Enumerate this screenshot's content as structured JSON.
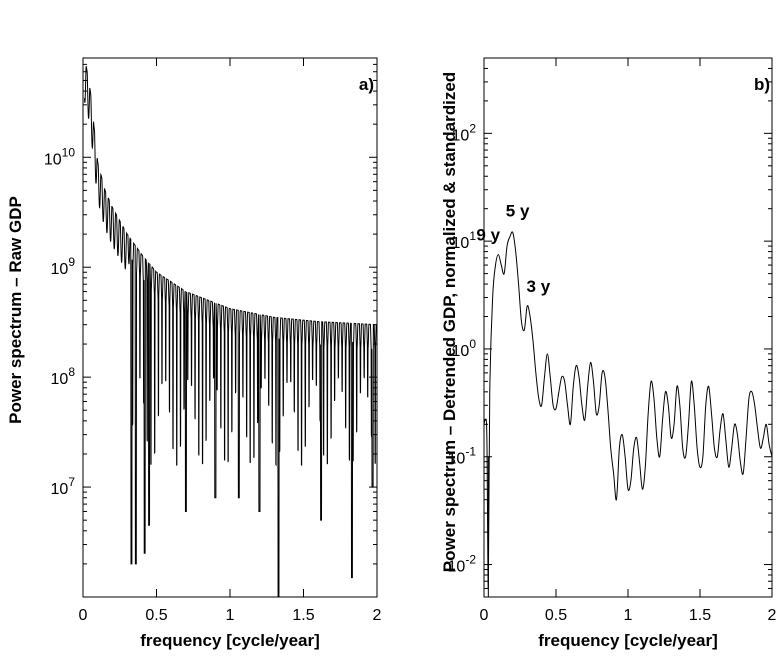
{
  "chart_data": [
    {
      "id": "a",
      "type": "line",
      "panel_label": "a)",
      "xlabel": "frequency [cycle/year]",
      "ylabel": "Power spectrum – Raw GDP",
      "xlim": [
        0,
        2
      ],
      "ylim": [
        1000000,
        80000000000
      ],
      "yscale": "log",
      "xticks": [
        0,
        0.5,
        1,
        1.5,
        2
      ],
      "xtick_labels": [
        "0",
        "0.5",
        "1",
        "1.5",
        "2"
      ],
      "yticks": [
        10000000,
        100000000,
        1000000000,
        10000000000
      ],
      "ytick_labels": [
        {
          "base": "10",
          "exp": "7"
        },
        {
          "base": "10",
          "exp": "8"
        },
        {
          "base": "10",
          "exp": "9"
        },
        {
          "base": "10",
          "exp": "10"
        }
      ],
      "envelope": {
        "x": [
          0.02,
          0.05,
          0.1,
          0.15,
          0.2,
          0.3,
          0.4,
          0.5,
          0.7,
          1.0,
          1.3,
          1.6,
          2.0
        ],
        "y": [
          70000000000,
          40000000000,
          9000000000,
          5000000000,
          3500000000,
          2000000000,
          1300000000,
          900000000,
          600000000,
          420000000,
          350000000,
          320000000,
          300000000
        ]
      },
      "spikes": {
        "x": [
          0.33,
          0.36,
          0.42,
          0.45,
          0.7,
          0.9,
          1.06,
          1.2,
          1.33,
          1.62,
          1.83,
          1.97
        ],
        "y": [
          2000000,
          2000000,
          2500000,
          4500000,
          6000000,
          8000000,
          8000000,
          6000000,
          1000000,
          5000000,
          1500000,
          10000000
        ]
      }
    },
    {
      "id": "b",
      "type": "line",
      "panel_label": "b)",
      "xlabel": "frequency [cycle/year]",
      "ylabel": "Power spectrum – Detrended GDP, normalized & standardized",
      "xlim": [
        0,
        2
      ],
      "ylim": [
        0.005,
        500
      ],
      "yscale": "log",
      "xticks": [
        0,
        0.5,
        1,
        1.5,
        2
      ],
      "xtick_labels": [
        "0",
        "0.5",
        "1",
        "1.5",
        "2"
      ],
      "yticks": [
        0.01,
        0.1,
        1,
        10,
        100
      ],
      "ytick_labels": [
        {
          "base": "10",
          "exp": "-2"
        },
        {
          "base": "10",
          "exp": "-1"
        },
        {
          "base": "10",
          "exp": "0"
        },
        {
          "base": "10",
          "exp": "1"
        },
        {
          "base": "10",
          "exp": "2"
        }
      ],
      "series": {
        "x": [
          0,
          0.01,
          0.02,
          0.03,
          0.04,
          0.06,
          0.08,
          0.1,
          0.12,
          0.14,
          0.16,
          0.18,
          0.2,
          0.22,
          0.24,
          0.26,
          0.28,
          0.3,
          0.32,
          0.34,
          0.36,
          0.38,
          0.4,
          0.42,
          0.44,
          0.46,
          0.48,
          0.5,
          0.52,
          0.54,
          0.56,
          0.58,
          0.6,
          0.62,
          0.64,
          0.66,
          0.68,
          0.7,
          0.72,
          0.74,
          0.76,
          0.78,
          0.8,
          0.82,
          0.84,
          0.86,
          0.88,
          0.9,
          0.92,
          0.94,
          0.96,
          0.98,
          1.0,
          1.02,
          1.04,
          1.06,
          1.08,
          1.1,
          1.12,
          1.14,
          1.16,
          1.18,
          1.2,
          1.22,
          1.24,
          1.26,
          1.28,
          1.3,
          1.32,
          1.34,
          1.36,
          1.38,
          1.4,
          1.42,
          1.44,
          1.46,
          1.48,
          1.5,
          1.52,
          1.54,
          1.56,
          1.58,
          1.6,
          1.62,
          1.64,
          1.66,
          1.68,
          1.7,
          1.72,
          1.74,
          1.76,
          1.78,
          1.8,
          1.82,
          1.84,
          1.86,
          1.88,
          1.9,
          1.92,
          1.94,
          1.96,
          1.98,
          2.0
        ],
        "y": [
          0.2,
          0.22,
          0.15,
          0.006,
          0.4,
          3,
          6,
          7.5,
          6,
          5,
          9,
          11,
          12,
          8,
          4,
          1.8,
          1.5,
          2.5,
          2,
          1.2,
          0.6,
          0.35,
          0.3,
          0.55,
          0.9,
          0.55,
          0.3,
          0.28,
          0.4,
          0.55,
          0.5,
          0.3,
          0.2,
          0.45,
          0.7,
          0.55,
          0.3,
          0.22,
          0.45,
          0.75,
          0.5,
          0.25,
          0.3,
          0.6,
          0.55,
          0.28,
          0.12,
          0.07,
          0.04,
          0.12,
          0.16,
          0.1,
          0.05,
          0.06,
          0.12,
          0.15,
          0.09,
          0.05,
          0.08,
          0.25,
          0.5,
          0.35,
          0.15,
          0.1,
          0.22,
          0.4,
          0.3,
          0.15,
          0.2,
          0.45,
          0.3,
          0.12,
          0.1,
          0.2,
          0.5,
          0.3,
          0.12,
          0.08,
          0.1,
          0.3,
          0.45,
          0.25,
          0.12,
          0.1,
          0.18,
          0.25,
          0.14,
          0.08,
          0.12,
          0.2,
          0.16,
          0.09,
          0.07,
          0.15,
          0.35,
          0.4,
          0.3,
          0.18,
          0.12,
          0.15,
          0.2,
          0.13,
          0.1
        ]
      },
      "annotations": [
        {
          "text": "9 y",
          "x": 0.1,
          "y": 7.5
        },
        {
          "text": "5 y",
          "x": 0.2,
          "y": 12
        },
        {
          "text": "3 y",
          "x": 0.33,
          "y": 2.5
        }
      ]
    }
  ]
}
